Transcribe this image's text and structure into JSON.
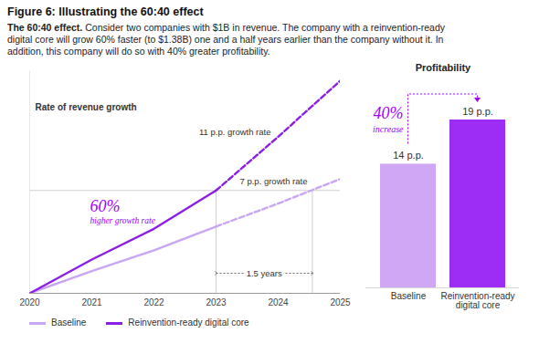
{
  "title": "Figure 6: Illustrating the 60:40 effect",
  "subtitle": {
    "lead": "The 60:40 effect.",
    "text": "Consider two companies with $1B in revenue. The company with a reinvention-ready digital core will grow 60% faster (to $1.38B) one and a half years earlier than the company without it. In addition, this company will do so with 40% greater profitability."
  },
  "chart_data": [
    {
      "type": "line",
      "title": "Rate of revenue growth",
      "x": [
        2020,
        2021,
        2022,
        2023,
        2024,
        2025
      ],
      "series": [
        {
          "name": "Baseline",
          "color": "#c9a6f3",
          "values": [
            0,
            29,
            56,
            87,
            117,
            149
          ],
          "label": "7 p.p. growth rate"
        },
        {
          "name": "Reinvention-ready digital core",
          "color": "#8c1fe6",
          "values": [
            0,
            44,
            84,
            134,
            204,
            277
          ],
          "label": "11 p.p. growth rate"
        }
      ],
      "xlim": [
        2020,
        2025
      ],
      "xticks": [
        2020,
        2021,
        2022,
        2023,
        2024,
        2025
      ],
      "ylim": [
        0,
        290
      ],
      "tick_labels": "x",
      "legend": "bottom",
      "projection_from": 2023,
      "reference_y": 134,
      "interval": {
        "x": [
          2023,
          2024.55
        ],
        "label": "1.5 years"
      },
      "annotation": {
        "emphasis": "60%",
        "text": "higher growth rate"
      }
    },
    {
      "type": "bar",
      "title": "Profitability",
      "categories": [
        "Baseline",
        "Reinvention-ready digital core"
      ],
      "values": [
        14,
        19
      ],
      "value_labels": [
        "14 p.p.",
        "19 p.p."
      ],
      "colors": [
        "#cfa7f5",
        "#9d2cf5"
      ],
      "ylim": [
        0,
        19
      ],
      "tick_labels": "x",
      "data_labels": true,
      "annotation": {
        "emphasis": "40%",
        "text": "increase"
      }
    }
  ]
}
